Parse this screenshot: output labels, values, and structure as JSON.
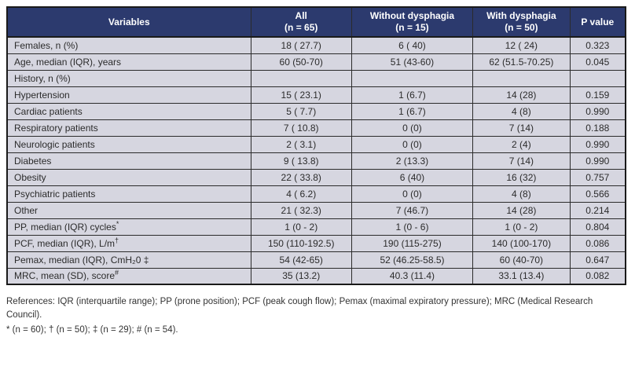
{
  "colors": {
    "header_bg": "#2c3a6e",
    "header_text": "#ffffff",
    "row_bg": "#d6d6e0",
    "border": "#1a1a1a",
    "cell_text": "#2b2b2b"
  },
  "table": {
    "headers": [
      {
        "label": "Variables",
        "sub": ""
      },
      {
        "label": "All",
        "sub": "(n = 65)"
      },
      {
        "label": "Without dysphagia",
        "sub": "(n = 15)"
      },
      {
        "label": "With dysphagia",
        "sub": "(n = 50)"
      },
      {
        "label": "P value",
        "sub": ""
      }
    ],
    "rows": [
      {
        "variable": "Females, n (%)",
        "mark": "",
        "all": "18 ( 27.7)",
        "without_dysphagia": "6 ( 40)",
        "with_dysphagia": "12 ( 24)",
        "p_value": "0.323"
      },
      {
        "variable": "Age, median (IQR), years",
        "mark": "",
        "all": "60 (50-70)",
        "without_dysphagia": "51 (43-60)",
        "with_dysphagia": "62 (51.5-70.25)",
        "p_value": "0.045"
      },
      {
        "variable": "History, n (%)",
        "mark": "",
        "all": "",
        "without_dysphagia": "",
        "with_dysphagia": "",
        "p_value": ""
      },
      {
        "variable": "Hypertension",
        "mark": "",
        "all": "15 ( 23.1)",
        "without_dysphagia": "1 (6.7)",
        "with_dysphagia": "14 (28)",
        "p_value": "0.159"
      },
      {
        "variable": "Cardiac patients",
        "mark": "",
        "all": "5 ( 7.7)",
        "without_dysphagia": "1 (6.7)",
        "with_dysphagia": "4 (8)",
        "p_value": "0.990"
      },
      {
        "variable": "Respiratory patients",
        "mark": "",
        "all": "7 ( 10.8)",
        "without_dysphagia": "0 (0)",
        "with_dysphagia": "7 (14)",
        "p_value": "0.188"
      },
      {
        "variable": "Neurologic patients",
        "mark": "",
        "all": "2 ( 3.1)",
        "without_dysphagia": "0 (0)",
        "with_dysphagia": "2 (4)",
        "p_value": "0.990"
      },
      {
        "variable": "Diabetes",
        "mark": "",
        "all": "9 ( 13.8)",
        "without_dysphagia": "2 (13.3)",
        "with_dysphagia": "7 (14)",
        "p_value": "0.990"
      },
      {
        "variable": "Obesity",
        "mark": "",
        "all": "22 ( 33.8)",
        "without_dysphagia": "6 (40)",
        "with_dysphagia": "16 (32)",
        "p_value": "0.757"
      },
      {
        "variable": "Psychiatric patients",
        "mark": "",
        "all": "4 ( 6.2)",
        "without_dysphagia": "0 (0)",
        "with_dysphagia": "4 (8)",
        "p_value": "0.566"
      },
      {
        "variable": "Other",
        "mark": "",
        "all": "21 ( 32.3)",
        "without_dysphagia": "7 (46.7)",
        "with_dysphagia": "14 (28)",
        "p_value": "0.214"
      },
      {
        "variable": "PP, median (IQR) cycles",
        "mark": "*",
        "all": "1 (0 - 2)",
        "without_dysphagia": "1 (0 - 6)",
        "with_dysphagia": "1 (0 - 2)",
        "p_value": "0.804"
      },
      {
        "variable": "PCF, median (IQR), L/m",
        "mark": "†",
        "all": "150 (110-192.5)",
        "without_dysphagia": "190 (115-275)",
        "with_dysphagia": "140 (100-170)",
        "p_value": "0.086"
      },
      {
        "variable": "Pemax, median (IQR), CmH₂0 ‡",
        "mark": "",
        "all": "54 (42-65)",
        "without_dysphagia": "52 (46.25-58.5)",
        "with_dysphagia": "60 (40-70)",
        "p_value": "0.647"
      },
      {
        "variable": "MRC, mean (SD), score",
        "mark": "#",
        "all": "35 (13.2)",
        "without_dysphagia": "40.3 (11.4)",
        "with_dysphagia": "33.1 (13.4)",
        "p_value": "0.082"
      }
    ]
  },
  "footnotes": {
    "references": "References: IQR (interquartile range); PP (prone position); PCF (peak cough flow); Pemax (maximal expiratory pressure); MRC (Medical Research Council).",
    "samples": "* (n = 60); † (n = 50); ‡ (n = 29); # (n = 54)."
  }
}
